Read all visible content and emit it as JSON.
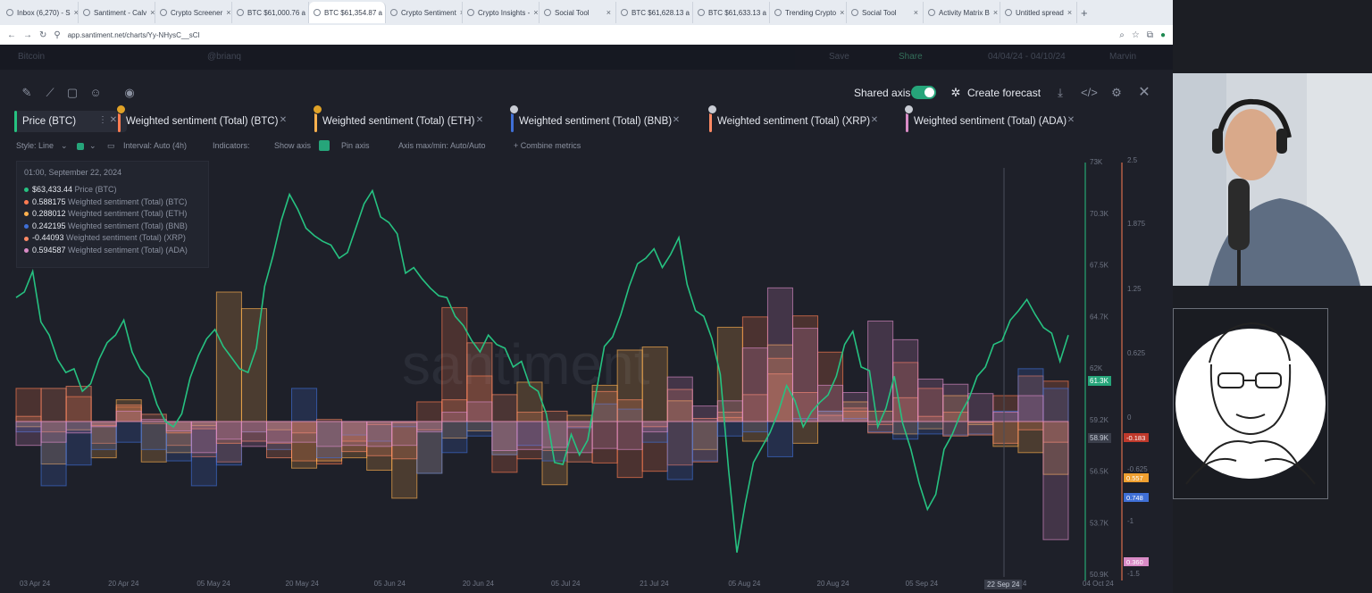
{
  "browser": {
    "tabs": [
      {
        "label": "Inbox (6,270) - S"
      },
      {
        "label": "Santiment - Calv"
      },
      {
        "label": "Crypto Screener"
      },
      {
        "label": "BTC $61,000.76 a"
      },
      {
        "label": "BTC $61,354.87 a",
        "active": true
      },
      {
        "label": "Crypto Sentiment"
      },
      {
        "label": "Crypto Insights -"
      },
      {
        "label": "Social Tool"
      },
      {
        "label": "BTC $61,628.13 a"
      },
      {
        "label": "BTC $61,633.13 a"
      },
      {
        "label": "Trending Crypto"
      },
      {
        "label": "Social Tool"
      },
      {
        "label": "Activity Matrix B"
      },
      {
        "label": "Untitled spread"
      }
    ],
    "url": "app.santiment.net/charts/Yy-NHysC__sCI"
  },
  "header_bar": {
    "asset": "Bitcoin",
    "user": "@brianq",
    "save": "Save",
    "share": "Share",
    "date_range": "04/04/24 - 04/10/24",
    "user_menu": "Marvin"
  },
  "toolbar": {
    "shared_axis_label": "Shared axis",
    "create_forecast_label": "Create forecast",
    "icons": [
      "pencil-icon",
      "line-icon",
      "note-icon",
      "emoji-icon",
      "eye-icon",
      "download-icon",
      "embed-icon",
      "settings-icon",
      "close-icon"
    ]
  },
  "metrics": [
    {
      "label": "Price (BTC)",
      "color": "#26c281"
    },
    {
      "label": "Weighted sentiment (Total) (BTC)",
      "color": "#ff7c52",
      "badge": "2"
    },
    {
      "label": "Weighted sentiment (Total) (ETH)",
      "color": "#ffb14e",
      "badge": "2"
    },
    {
      "label": "Weighted sentiment (Total) (BNB)",
      "color": "#3f6fd6"
    },
    {
      "label": "Weighted sentiment (Total) (XRP)",
      "color": "#ff8a65"
    },
    {
      "label": "Weighted sentiment (Total) (ADA)",
      "color": "#d98bc6"
    }
  ],
  "options": {
    "style": "Style: Line",
    "interval": "Interval: Auto (4h)",
    "indicators": "Indicators:",
    "show_axis": "Show axis",
    "pin_axis": "Pin axis",
    "axis_maxmin": "Axis max/min: Auto/Auto",
    "combine": "+ Combine metrics"
  },
  "tooltip": {
    "date": "01:00, September 22, 2024",
    "rows": [
      {
        "value": "$63,433.44",
        "name": "Price (BTC)",
        "color": "#26c281"
      },
      {
        "value": "0.588175",
        "name": "Weighted sentiment (Total) (BTC)",
        "color": "#ff7c52"
      },
      {
        "value": "0.288012",
        "name": "Weighted sentiment (Total) (ETH)",
        "color": "#ffb14e"
      },
      {
        "value": "0.242195",
        "name": "Weighted sentiment (Total) (BNB)",
        "color": "#3f6fd6"
      },
      {
        "value": "-0.44093",
        "name": "Weighted sentiment (Total) (XRP)",
        "color": "#ff8a65"
      },
      {
        "value": "0.594587",
        "name": "Weighted sentiment (Total) (ADA)",
        "color": "#d98bc6"
      }
    ]
  },
  "watermark": "santiment",
  "chart_data": {
    "type": "line",
    "x_ticks": [
      "03 Apr 24",
      "20 Apr 24",
      "05 May 24",
      "20 May 24",
      "05 Jun 24",
      "20 Jun 24",
      "05 Jul 24",
      "21 Jul 24",
      "05 Aug 24",
      "20 Aug 24",
      "05 Sep 24",
      "20 Sep 24",
      "04 Oct 24"
    ],
    "crosshair_label": "22 Sep 24",
    "price_axis": {
      "ticks": [
        "73K",
        "70.3K",
        "67.5K",
        "64.7K",
        "62K",
        "59.2K",
        "56.5K",
        "53.7K",
        "50.9K"
      ],
      "ylim": [
        50900,
        73000
      ],
      "current_label": "61.3K",
      "secondary_label": "58.9K"
    },
    "sentiment_axis": {
      "ticks": [
        "2.5",
        "1.875",
        "1.25",
        "0.625",
        "0",
        "-0.625",
        "-1",
        "-1.5"
      ],
      "ylim": [
        -1.5,
        2.5
      ],
      "labels": [
        {
          "text": "-0.183",
          "color": "#c0392b"
        },
        {
          "text": "0.557",
          "color": "#f0a030"
        },
        {
          "text": "0.748",
          "color": "#3f6fd6"
        },
        {
          "text": "0.360",
          "color": "#d98bc6"
        }
      ]
    },
    "series": [
      {
        "name": "Price (BTC)",
        "color": "#26c281",
        "values": [
          65800,
          66100,
          67200,
          64500,
          63800,
          62500,
          61800,
          62000,
          60800,
          61200,
          62500,
          63400,
          63800,
          64600,
          62900,
          62000,
          61500,
          60100,
          59200,
          58900,
          59600,
          61500,
          62700,
          63600,
          64100,
          63200,
          62600,
          62000,
          61800,
          63100,
          66400,
          68000,
          69900,
          71300,
          70500,
          69500,
          69100,
          68800,
          68600,
          67900,
          68200,
          69500,
          70800,
          71500,
          70100,
          69800,
          69200,
          67100,
          67400,
          66800,
          66300,
          65900,
          65800,
          64800,
          64300,
          63500,
          62900,
          63800,
          63300,
          63100,
          62100,
          62400,
          61100,
          60800,
          59600,
          57000,
          56900,
          58500,
          57400,
          58200,
          60700,
          63200,
          63700,
          64900,
          66400,
          67600,
          67900,
          68400,
          67400,
          68100,
          69000,
          66500,
          65100,
          64800,
          63600,
          61700,
          56600,
          52200,
          54800,
          57000,
          57800,
          58600,
          59700,
          61100,
          60300,
          58900,
          59700,
          60200,
          60600,
          61600,
          63300,
          64000,
          62100,
          61900,
          58900,
          59900,
          61600,
          59100,
          57700,
          55900,
          54500,
          55300,
          57700,
          58500,
          59600,
          60400,
          61600,
          62100,
          63300,
          63500,
          64600,
          65100,
          65700,
          64900,
          64200,
          63900,
          62400,
          63800
        ]
      },
      {
        "name": "Weighted sentiment (Total) (BTC)",
        "color": "#ff7c52",
        "values": [
          0.32,
          -0.1,
          0.24,
          -0.21,
          0.14,
          -0.02,
          -0.23,
          -0.34,
          -0.39,
          -0.1,
          -0.21,
          -0.38,
          -0.41,
          -0.19,
          -0.03,
          -0.01,
          0.19,
          1.1,
          0.44,
          -0.49,
          -0.36,
          -0.28,
          -0.05,
          -0.4,
          -0.54,
          -0.48,
          -0.42,
          -0.39,
          0.04,
          1.01,
          0.61,
          1.02,
          0.67,
          0.1,
          -0.03,
          0.57,
          0.32,
          0.09,
          -0.01,
          0.25,
          0.44,
          0.39
        ]
      },
      {
        "name": "Weighted sentiment (Total) (ETH)",
        "color": "#ffb14e",
        "values": [
          -0.05,
          -0.41,
          -0.08,
          -0.35,
          0.21,
          -0.39,
          -0.3,
          -0.04,
          1.25,
          1.09,
          -0.08,
          -0.45,
          -0.38,
          -0.35,
          -0.47,
          -0.74,
          -0.5,
          -0.16,
          -0.09,
          -0.32,
          0.38,
          -0.61,
          0.06,
          0.35,
          0.69,
          0.72,
          0.2,
          -0.27,
          0.91,
          -0.19,
          0.74,
          -0.21,
          0.1,
          0.19,
          0.1,
          -0.12,
          -0.07,
          0.25,
          -0.03,
          -0.24,
          -0.3,
          -0.51
        ]
      },
      {
        "name": "Weighted sentiment (Total) (BNB)",
        "color": "#3f6fd6",
        "values": [
          -0.1,
          -0.62,
          -0.42,
          -0.27,
          -0.2,
          -0.27,
          -0.38,
          -0.62,
          -0.42,
          -0.1,
          -0.27,
          0.32,
          -0.35,
          -0.13,
          -0.19,
          -0.05,
          -0.5,
          -0.3,
          -0.14,
          -0.32,
          -0.23,
          -0.38,
          -0.06,
          0.17,
          0.12,
          -0.2,
          -0.56,
          -0.38,
          -0.14,
          -0.1,
          -0.34,
          0.03,
          0.1,
          0.03,
          -0.1,
          -0.17,
          -0.12,
          -0.13,
          -0.12,
          0.1,
          0.51,
          0.32
        ]
      },
      {
        "name": "Weighted sentiment (Total) (XRP)",
        "color": "#ff8a65",
        "values": [
          0.05,
          0.32,
          0.34,
          -0.04,
          0.16,
          0.07,
          -0.11,
          -0.07,
          -0.21,
          -0.19,
          -0.35,
          -0.11,
          0.02,
          -0.29,
          -0.33,
          -0.36,
          -0.08,
          0.21,
          0.76,
          0.26,
          0.09,
          0.1,
          -0.39,
          0.29,
          0.21,
          -0.05,
          0.31,
          0.03,
          0.09,
          0.26,
          0.46,
          0.28,
          0.06,
          0.13,
          -0.11,
          0.23,
          0.05,
          -0.14,
          -0.13,
          -0.21,
          -0.08,
          -0.2
        ]
      },
      {
        "name": "Weighted sentiment (Total) (ADA)",
        "color": "#d98bc6",
        "values": [
          -0.23,
          -0.2,
          -0.11,
          -0.05,
          0.1,
          0.02,
          -0.09,
          -0.3,
          -0.17,
          -0.24,
          -0.2,
          -0.2,
          -0.24,
          -0.23,
          -0.24,
          -0.23,
          -0.1,
          0.09,
          0.19,
          -0.28,
          -0.27,
          -0.25,
          -0.3,
          -0.26,
          -0.27,
          -0.1,
          0.43,
          0.15,
          0.2,
          0.71,
          1.29,
          0.9,
          0.35,
          0.28,
          0.97,
          0.79,
          0.41,
          0.36,
          0.27,
          0.09,
          0.25,
          -1.14
        ]
      }
    ]
  }
}
